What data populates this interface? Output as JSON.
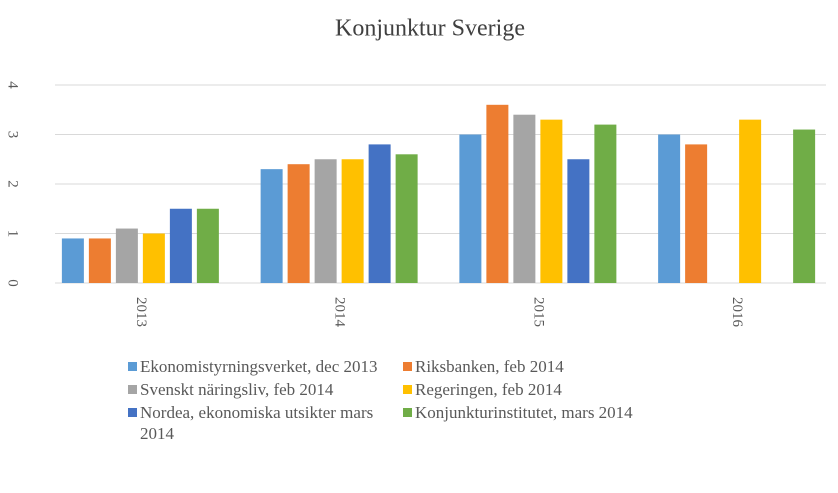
{
  "chart_data": {
    "type": "bar",
    "title": "Konjunktur  Sverige",
    "categories": [
      "2013",
      "2014",
      "2015",
      "2016"
    ],
    "series": [
      {
        "name": "Ekonomistyrningsverket, dec 2013",
        "color": "#5b9bd5",
        "values": [
          0.9,
          2.3,
          3.0,
          3.0
        ]
      },
      {
        "name": "Riksbanken, feb 2014",
        "color": "#ed7d31",
        "values": [
          0.9,
          2.4,
          3.6,
          2.8
        ]
      },
      {
        "name": "Svenskt näringsliv,  feb 2014",
        "color": "#a5a5a5",
        "values": [
          1.1,
          2.5,
          3.4,
          null
        ]
      },
      {
        "name": "Regeringen,   feb 2014",
        "color": "#ffc000",
        "values": [
          1.0,
          2.5,
          3.3,
          3.3
        ]
      },
      {
        "name": "Nordea, ekonomiska utsikter mars 2014",
        "color": "#4472c4",
        "values": [
          1.5,
          2.8,
          2.5,
          null
        ]
      },
      {
        "name": "Konjunkturinstitutet, mars 2014",
        "color": "#70ad47",
        "values": [
          1.5,
          2.6,
          3.2,
          3.1
        ]
      }
    ],
    "ylim": [
      0,
      4
    ],
    "yticks": [
      0,
      1,
      2,
      3,
      4
    ],
    "grid": true
  }
}
